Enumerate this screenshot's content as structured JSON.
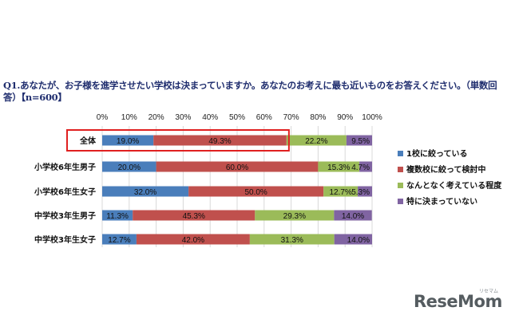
{
  "question_text": "Q1.あなたが、お子様を進学させたい学校は決まっていますか。あなたのお考えに最も近いものをお答えください。（単数回答）【n=600】",
  "brand": {
    "name": "ReseMom",
    "sub": "リセマム"
  },
  "chart_data": {
    "type": "bar",
    "orientation": "horizontal",
    "stacked": "percent",
    "title": "Q1.あなたが、お子様を進学させたい学校は決まっていますか。あなたのお考えに最も近いものをお答えください。（単数回答）【n=600】",
    "categories": [
      "全体",
      "小学校6年生男子",
      "小学校6年生女子",
      "中学校3年生男子",
      "中学校3年生女子"
    ],
    "highlighted_category": "全体",
    "xlim": [
      0,
      100
    ],
    "xticks": [
      "0%",
      "10%",
      "20%",
      "30%",
      "40%",
      "50%",
      "60%",
      "70%",
      "80%",
      "90%",
      "100%"
    ],
    "legend_position": "right",
    "series": [
      {
        "name": "1校に絞っている",
        "color": "#4a7ebb",
        "values": [
          19.0,
          20.0,
          32.0,
          11.3,
          12.7
        ],
        "labels": [
          "19.0%",
          "20.0%",
          "32.0%",
          "11.3%",
          "12.7%"
        ]
      },
      {
        "name": "複数校に絞って検討中",
        "color": "#c0504d",
        "values": [
          49.3,
          60.0,
          50.0,
          45.3,
          42.0
        ],
        "labels": [
          "49.3%",
          "60.0%",
          "50.0%",
          "45.3%",
          "42.0%"
        ]
      },
      {
        "name": "なんとなく考えている程度",
        "color": "#9bbb59",
        "values": [
          22.2,
          15.3,
          12.7,
          29.3,
          31.3
        ],
        "labels": [
          "22.2%",
          "15.3%",
          "12.7%",
          "29.3%",
          "31.3%"
        ]
      },
      {
        "name": "特に決まっていない",
        "color": "#8064a2",
        "values": [
          9.5,
          4.7,
          5.3,
          14.0,
          14.0
        ],
        "labels": [
          "9.5%",
          "4.7%",
          "5.3%",
          "14.0%",
          "14.0%"
        ]
      }
    ],
    "highlight_color": "#e02020"
  }
}
